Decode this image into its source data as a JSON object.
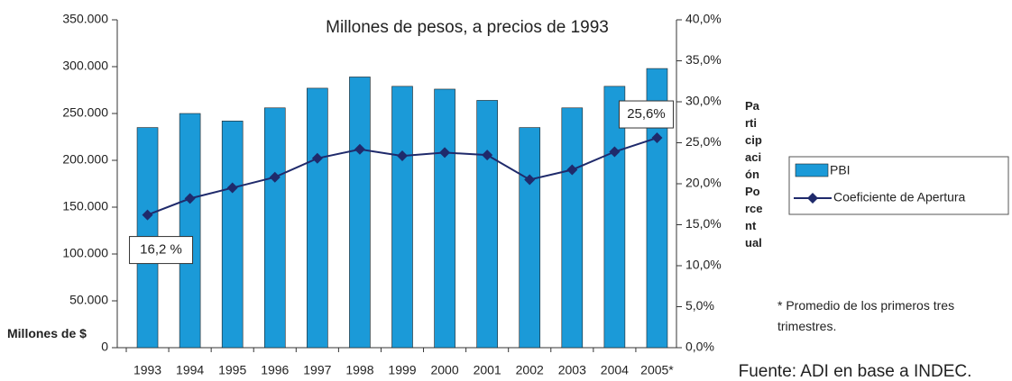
{
  "chart_data": {
    "type": "bar_line",
    "title": "Millones de pesos,  a precios de 1993",
    "ylabel": "Millones de $",
    "y2label": "Participación Porcentual",
    "categories": [
      "1993",
      "1994",
      "1995",
      "1996",
      "1997",
      "1998",
      "1999",
      "2000",
      "2001",
      "2002",
      "2003",
      "2004",
      "2005*"
    ],
    "series": [
      {
        "name": "PBI",
        "type": "bar",
        "color": "#1b9ad8",
        "values": [
          235000,
          250000,
          242000,
          256000,
          277000,
          289000,
          279000,
          276000,
          264000,
          235000,
          256000,
          279000,
          298000
        ]
      },
      {
        "name": "Coeficiente de Apertura",
        "type": "line",
        "axis": "y2",
        "color": "#1f2a6b",
        "values": [
          16.2,
          18.2,
          19.5,
          20.8,
          23.1,
          24.2,
          23.4,
          23.8,
          23.5,
          20.5,
          21.7,
          23.9,
          25.6
        ],
        "value_labels": [
          "16,2 %",
          null,
          null,
          null,
          null,
          null,
          null,
          null,
          null,
          null,
          null,
          null,
          "25,6%"
        ]
      }
    ],
    "ylim": [
      0,
      350000
    ],
    "yticks": [
      0,
      {
        "value": 50000,
        "label": "50.000"
      },
      {
        "value": 100000,
        "label": "100.000"
      },
      {
        "value": 150000,
        "label": "150.000"
      },
      {
        "value": 200000,
        "label": "200.000"
      },
      {
        "value": 250000,
        "label": "250.000"
      },
      {
        "value": 300000,
        "label": "300.000"
      },
      {
        "value": 350000,
        "label": "350.000"
      }
    ],
    "y2lim": [
      0,
      40
    ],
    "y2ticks": [
      {
        "value": 0,
        "label": "0,0%"
      },
      {
        "value": 5,
        "label": "5,0%"
      },
      {
        "value": 10,
        "label": "10,0%"
      },
      {
        "value": 15,
        "label": "15,0%"
      },
      {
        "value": 20,
        "label": "20,0%"
      },
      {
        "value": 25,
        "label": "25,0%"
      },
      {
        "value": 30,
        "label": "30,0%"
      },
      {
        "value": 35,
        "label": "35,0%"
      },
      {
        "value": 40,
        "label": "40,0%"
      }
    ],
    "legend": "right",
    "note": "* Promedio de los primeros tres trimestres.",
    "source": "Fuente: ADI en base a INDEC."
  }
}
